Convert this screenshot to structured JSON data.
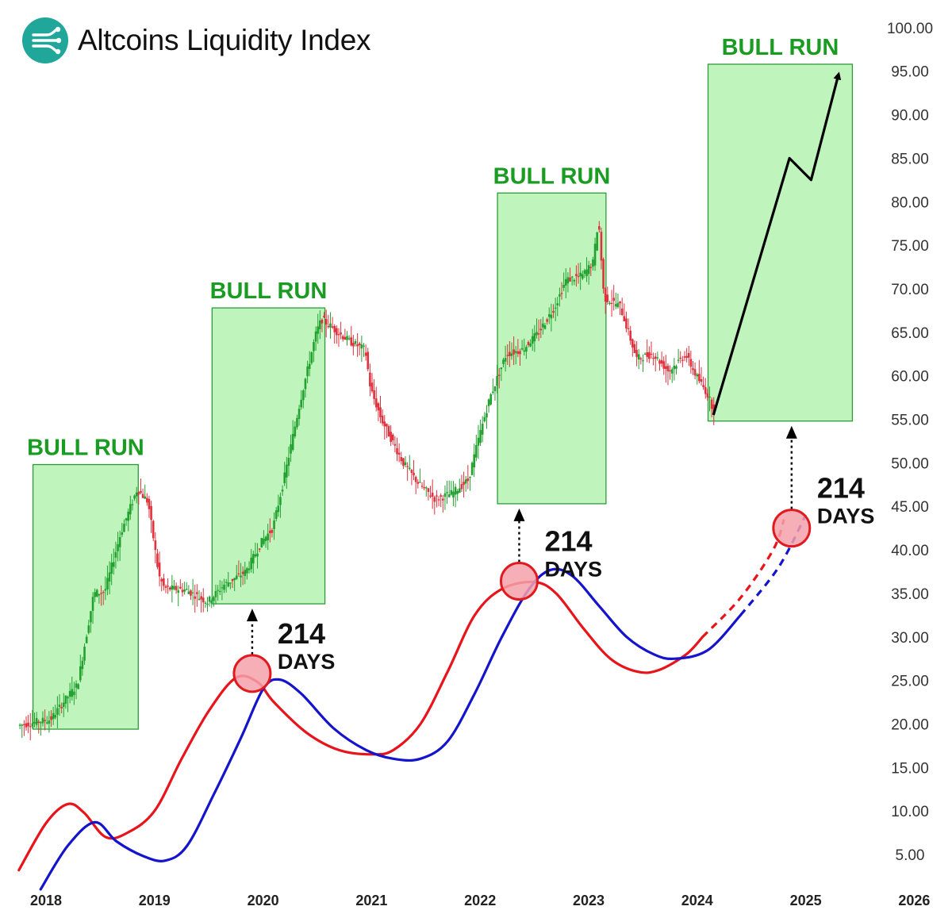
{
  "header": {
    "title": "Altcoins Liquidity Index",
    "logo_icon": "liquidity-logo-icon"
  },
  "chart_data": {
    "type": "candlestick-with-indicator-lines",
    "title": "Altcoins Liquidity Index",
    "ylim": [
      0,
      102
    ],
    "y_ticks": [
      "5.00",
      "10.00",
      "15.00",
      "20.00",
      "25.00",
      "30.00",
      "35.00",
      "40.00",
      "45.00",
      "50.00",
      "55.00",
      "60.00",
      "65.00",
      "70.00",
      "75.00",
      "80.00",
      "85.00",
      "90.00",
      "95.00",
      "100.00"
    ],
    "x_range": [
      2017.75,
      2026.1
    ],
    "x_ticks": [
      "2018",
      "2019",
      "2020",
      "2021",
      "2022",
      "2023",
      "2024",
      "2025",
      "2026"
    ],
    "colors": {
      "up": "#22a12f",
      "down": "#e0313c",
      "red_line": "#e8141b",
      "blue_line": "#1414cc",
      "zone_fill": "#bff5bd",
      "zone_border": "#2f9a3a",
      "zone_label": "#1a9c23"
    },
    "price_path": [
      [
        2017.75,
        19.8
      ],
      [
        2017.95,
        20.3
      ],
      [
        2018.05,
        20.5
      ],
      [
        2018.2,
        23.0
      ],
      [
        2018.3,
        24.5
      ],
      [
        2018.45,
        35.0
      ],
      [
        2018.55,
        35.2
      ],
      [
        2018.7,
        42.0
      ],
      [
        2018.85,
        47.0
      ],
      [
        2018.95,
        45.5
      ],
      [
        2019.05,
        37.0
      ],
      [
        2019.1,
        35.6
      ],
      [
        2019.3,
        35.4
      ],
      [
        2019.5,
        34.0
      ],
      [
        2019.65,
        36.0
      ],
      [
        2019.85,
        37.5
      ],
      [
        2020.0,
        41.0
      ],
      [
        2020.1,
        42.5
      ],
      [
        2020.2,
        48.0
      ],
      [
        2020.35,
        57.0
      ],
      [
        2020.5,
        65.0
      ],
      [
        2020.55,
        66.5
      ],
      [
        2020.65,
        65.5
      ],
      [
        2020.8,
        64.0
      ],
      [
        2020.95,
        63.0
      ],
      [
        2021.0,
        58.5
      ],
      [
        2021.1,
        55.0
      ],
      [
        2021.3,
        50.0
      ],
      [
        2021.45,
        47.5
      ],
      [
        2021.6,
        45.8
      ],
      [
        2021.75,
        46.5
      ],
      [
        2021.9,
        48.0
      ],
      [
        2022.0,
        53.0
      ],
      [
        2022.1,
        57.5
      ],
      [
        2022.25,
        62.5
      ],
      [
        2022.4,
        63.0
      ],
      [
        2022.55,
        65.0
      ],
      [
        2022.7,
        68.0
      ],
      [
        2022.8,
        71.0
      ],
      [
        2022.95,
        71.5
      ],
      [
        2023.05,
        73.0
      ],
      [
        2023.1,
        78.0
      ],
      [
        2023.15,
        69.0
      ],
      [
        2023.3,
        68.0
      ],
      [
        2023.45,
        62.0
      ],
      [
        2023.6,
        62.5
      ],
      [
        2023.75,
        60.5
      ],
      [
        2023.9,
        62.5
      ],
      [
        2024.0,
        60.0
      ],
      [
        2024.1,
        58.0
      ],
      [
        2024.17,
        55.8
      ]
    ],
    "series": [
      {
        "name": "",
        "color": "#e8141b",
        "points": [
          [
            2017.75,
            3.2
          ],
          [
            2018.0,
            8.6
          ],
          [
            2018.2,
            10.8
          ],
          [
            2018.35,
            9.8
          ],
          [
            2018.55,
            7.0
          ],
          [
            2018.75,
            7.5
          ],
          [
            2019.0,
            10.0
          ],
          [
            2019.25,
            16.0
          ],
          [
            2019.5,
            21.5
          ],
          [
            2019.75,
            25.3
          ],
          [
            2019.95,
            24.8
          ],
          [
            2020.1,
            22.5
          ],
          [
            2020.4,
            19.0
          ],
          [
            2020.7,
            17.0
          ],
          [
            2021.0,
            16.5
          ],
          [
            2021.2,
            17.0
          ],
          [
            2021.45,
            20.0
          ],
          [
            2021.7,
            26.0
          ],
          [
            2021.95,
            32.5
          ],
          [
            2022.2,
            35.5
          ],
          [
            2022.5,
            36.3
          ],
          [
            2022.7,
            35.0
          ],
          [
            2022.95,
            31.0
          ],
          [
            2023.2,
            27.5
          ],
          [
            2023.45,
            26.0
          ],
          [
            2023.65,
            26.2
          ],
          [
            2023.9,
            28.0
          ],
          [
            2024.05,
            30.0
          ]
        ],
        "projection": [
          [
            2024.05,
            30.0
          ],
          [
            2024.4,
            34.5
          ],
          [
            2024.7,
            40.0
          ],
          [
            2024.8,
            43.5
          ]
        ]
      },
      {
        "name": "",
        "color": "#1414cc",
        "points": [
          [
            2017.95,
            1.0
          ],
          [
            2018.2,
            6.0
          ],
          [
            2018.45,
            8.7
          ],
          [
            2018.65,
            6.5
          ],
          [
            2018.9,
            4.8
          ],
          [
            2019.1,
            4.3
          ],
          [
            2019.3,
            6.0
          ],
          [
            2019.55,
            12.0
          ],
          [
            2019.8,
            18.5
          ],
          [
            2020.0,
            24.0
          ],
          [
            2020.15,
            25.1
          ],
          [
            2020.35,
            23.5
          ],
          [
            2020.65,
            19.5
          ],
          [
            2020.95,
            17.0
          ],
          [
            2021.2,
            16.0
          ],
          [
            2021.45,
            16.0
          ],
          [
            2021.7,
            18.0
          ],
          [
            2021.95,
            23.5
          ],
          [
            2022.2,
            30.0
          ],
          [
            2022.45,
            35.5
          ],
          [
            2022.65,
            37.7
          ],
          [
            2022.85,
            37.0
          ],
          [
            2023.1,
            33.5
          ],
          [
            2023.35,
            30.0
          ],
          [
            2023.6,
            28.0
          ],
          [
            2023.8,
            27.5
          ],
          [
            2024.1,
            28.5
          ],
          [
            2024.4,
            32.5
          ]
        ],
        "projection": [
          [
            2024.4,
            32.5
          ],
          [
            2024.75,
            38.0
          ],
          [
            2025.0,
            44.0
          ]
        ]
      }
    ],
    "zones": [
      {
        "label": "BULL RUN",
        "x0": 2017.88,
        "x1": 2018.85,
        "y0": 19.4,
        "y1": 49.8
      },
      {
        "label": "BULL RUN",
        "x0": 2019.53,
        "x1": 2020.57,
        "y0": 33.8,
        "y1": 67.8
      },
      {
        "label": "BULL RUN",
        "x0": 2022.16,
        "x1": 2023.16,
        "y0": 45.3,
        "y1": 81.0
      },
      {
        "label": "BULL RUN",
        "x0": 2024.1,
        "x1": 2025.43,
        "y0": 54.8,
        "y1": 95.8
      }
    ],
    "cross_markers": [
      {
        "x": 2019.9,
        "y": 25.8,
        "days_num": "214",
        "days_word": "DAYS"
      },
      {
        "x": 2022.36,
        "y": 36.4,
        "days_num": "214",
        "days_word": "DAYS"
      },
      {
        "x": 2024.87,
        "y": 42.5,
        "days_num": "214",
        "days_word": "DAYS"
      }
    ],
    "projection_arrow": [
      [
        2024.15,
        55.5
      ],
      [
        2024.85,
        85.0
      ],
      [
        2025.05,
        82.5
      ],
      [
        2025.3,
        94.5
      ]
    ]
  }
}
